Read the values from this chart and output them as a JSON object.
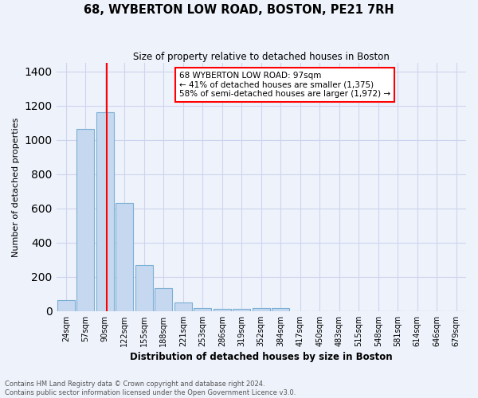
{
  "title": "68, WYBERTON LOW ROAD, BOSTON, PE21 7RH",
  "subtitle": "Size of property relative to detached houses in Boston",
  "xlabel": "Distribution of detached houses by size in Boston",
  "ylabel": "Number of detached properties",
  "categories": [
    "24sqm",
    "57sqm",
    "90sqm",
    "122sqm",
    "155sqm",
    "188sqm",
    "221sqm",
    "253sqm",
    "286sqm",
    "319sqm",
    "352sqm",
    "384sqm",
    "417sqm",
    "450sqm",
    "483sqm",
    "515sqm",
    "548sqm",
    "581sqm",
    "614sqm",
    "646sqm",
    "679sqm"
  ],
  "values": [
    65,
    1065,
    1160,
    630,
    270,
    135,
    50,
    18,
    12,
    12,
    20,
    20,
    0,
    0,
    0,
    0,
    0,
    0,
    0,
    0,
    0
  ],
  "bar_color": "#c5d8f0",
  "bar_edge_color": "#7bafd4",
  "red_line_x": 2.1,
  "annotation_line1": "68 WYBERTON LOW ROAD: 97sqm",
  "annotation_line2": "← 41% of detached houses are smaller (1,375)",
  "annotation_line3": "58% of semi-detached houses are larger (1,972) →",
  "ylim": [
    0,
    1450
  ],
  "yticks": [
    0,
    200,
    400,
    600,
    800,
    1000,
    1200,
    1400
  ],
  "footnote1": "Contains HM Land Registry data © Crown copyright and database right 2024.",
  "footnote2": "Contains public sector information licensed under the Open Government Licence v3.0.",
  "bg_color": "#eef2fb",
  "grid_color": "#cdd5ee"
}
